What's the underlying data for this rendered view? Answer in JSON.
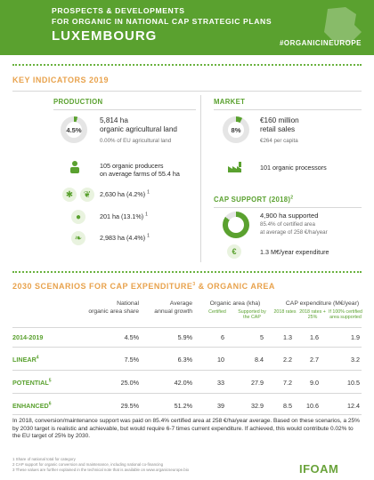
{
  "header": {
    "line1": "PROSPECTS & DEVELOPMENTS",
    "line2": "FOR ORGANIC IN NATIONAL CAP STRATEGIC PLANS",
    "country": "LUXEMBOURG",
    "hashtag": "#ORGANICINEUROPE"
  },
  "key_indicators": {
    "title": "KEY INDICATORS 2019",
    "production": {
      "title": "PRODUCTION",
      "donut_label": "4.5%",
      "donut_percent": 4.5,
      "ha": "5,814 ha",
      "land": "organic agricultural land",
      "eu_share": "0.00% of EU agricultural land",
      "producers_line1": "105 organic producers",
      "producers_line2": "on average farms of 55.4 ha",
      "items": [
        {
          "icon": "wheat-icon",
          "value": "2,630 ha (4.2%)",
          "sup": "1"
        },
        {
          "icon": "apple-icon",
          "value": "201 ha (13.1%)",
          "sup": "1"
        },
        {
          "icon": "grass-icon",
          "value": "2,983 ha (4.4%)",
          "sup": "1"
        }
      ]
    },
    "market": {
      "title": "MARKET",
      "donut_label": "8%",
      "donut_percent": 8,
      "sales_line1": "€160 million",
      "sales_line2": "retail sales",
      "per_capita": "€264 per capita",
      "processors": "101 organic processors"
    },
    "cap_support": {
      "title": "CAP SUPPORT (2018)",
      "title_sup": "2",
      "supported_ha": "4,900 ha supported",
      "certified": "85.4% of certified area",
      "average": "at average of 258 €/ha/year",
      "expenditure": "1.3 M€/year expenditure"
    }
  },
  "scenarios": {
    "title": "2030 SCENARIOS FOR CAP EXPENDITURE",
    "title_sup": "3",
    "title_tail": " & ORGANIC AREA",
    "headers": {
      "national_share": "National",
      "national_share2": "organic area share",
      "avg_growth": "Average",
      "avg_growth2": "annual growth",
      "organic_area": "Organic area (kha)",
      "certified": "Certified",
      "supported_by_cap": "Supported by the CAP",
      "cap_exp": "CAP expenditure (M€/year)",
      "rate2018": "2018 rates",
      "rate2018plus": "2018 rates + 25%",
      "rate100": "If 100% certified area supported"
    },
    "rows": [
      {
        "label": "2014-2019",
        "label_sup": "",
        "share": "4.5%",
        "growth": "5.9%",
        "certified": "6",
        "supported": "5",
        "r2018": "1.3",
        "r2018p": "1.6",
        "r100": "1.9"
      },
      {
        "label": "LINEAR",
        "label_sup": "4",
        "share": "7.5%",
        "growth": "6.3%",
        "certified": "10",
        "supported": "8.4",
        "r2018": "2.2",
        "r2018p": "2.7",
        "r100": "3.2"
      },
      {
        "label": "POTENTIAL",
        "label_sup": "5",
        "share": "25.0%",
        "growth": "42.0%",
        "certified": "33",
        "supported": "27.9",
        "r2018": "7.2",
        "r2018p": "9.0",
        "r100": "10.5"
      },
      {
        "label": "ENHANCED",
        "label_sup": "6",
        "share": "29.5%",
        "growth": "51.2%",
        "certified": "39",
        "supported": "32.9",
        "r2018": "8.5",
        "r2018p": "10.6",
        "r100": "12.4"
      }
    ]
  },
  "note": "In 2018, conversion/maintenance support was paid on 85.4% certified area at 258 €/ha/year average. Based on these scenarios, a 25% by 2030 target is realistic and achievable, but would require 6-7 times current expenditure. If achieved, this would contribute 0.02% to the EU target of 25% by 2030.",
  "footnotes": [
    "1 Share of national total for category",
    "2 CAP support for organic conversion and maintenance, including national co-financing",
    "3 These values are further explained in the technical note that is available on www.organicseurope.bio"
  ],
  "logo": "IFOAM"
}
